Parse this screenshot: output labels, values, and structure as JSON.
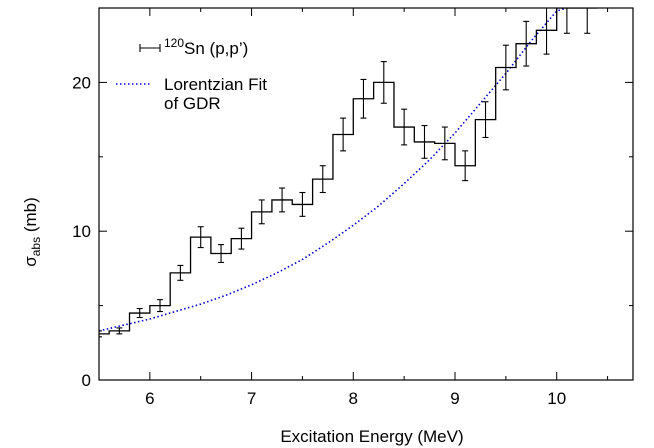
{
  "chart_data": {
    "type": "line",
    "xlabel": "Excitation Energy (MeV)",
    "ylabel_parts": {
      "main": "σ",
      "sub": "abs",
      "rest": " (mb)"
    },
    "xlim": [
      5.5,
      10.75
    ],
    "ylim": [
      0,
      25
    ],
    "xticks": [
      6,
      7,
      8,
      9,
      10
    ],
    "yticks": [
      0,
      10,
      20
    ],
    "legend_placement": "top-left",
    "series": [
      {
        "name_parts": {
          "sup": "120",
          "main": "Sn (p,p’)"
        },
        "kind": "histogram-with-errorbars",
        "color": "#000000",
        "bin_width": 0.2,
        "points": [
          {
            "x": 5.5,
            "y": 3.1,
            "err": 0.2
          },
          {
            "x": 5.7,
            "y": 3.3,
            "err": 0.2
          },
          {
            "x": 5.9,
            "y": 4.5,
            "err": 0.3
          },
          {
            "x": 6.1,
            "y": 5.0,
            "err": 0.4
          },
          {
            "x": 6.3,
            "y": 7.2,
            "err": 0.5
          },
          {
            "x": 6.5,
            "y": 9.6,
            "err": 0.7
          },
          {
            "x": 6.7,
            "y": 8.5,
            "err": 0.6
          },
          {
            "x": 6.9,
            "y": 9.5,
            "err": 0.7
          },
          {
            "x": 7.1,
            "y": 11.3,
            "err": 0.8
          },
          {
            "x": 7.3,
            "y": 12.1,
            "err": 0.8
          },
          {
            "x": 7.5,
            "y": 11.8,
            "err": 0.8
          },
          {
            "x": 7.7,
            "y": 13.5,
            "err": 0.9
          },
          {
            "x": 7.9,
            "y": 16.5,
            "err": 1.1
          },
          {
            "x": 8.1,
            "y": 18.9,
            "err": 1.3
          },
          {
            "x": 8.3,
            "y": 20.0,
            "err": 1.4
          },
          {
            "x": 8.5,
            "y": 17.0,
            "err": 1.2
          },
          {
            "x": 8.7,
            "y": 16.0,
            "err": 1.1
          },
          {
            "x": 8.9,
            "y": 15.9,
            "err": 1.1
          },
          {
            "x": 9.1,
            "y": 14.4,
            "err": 1.0
          },
          {
            "x": 9.3,
            "y": 17.5,
            "err": 1.2
          },
          {
            "x": 9.5,
            "y": 21.0,
            "err": 1.5
          },
          {
            "x": 9.7,
            "y": 22.6,
            "err": 1.5
          },
          {
            "x": 9.9,
            "y": 23.5,
            "err": 1.6
          },
          {
            "x": 10.1,
            "y": 25.0,
            "err": 1.7
          },
          {
            "x": 10.3,
            "y": 25.0,
            "err": 1.7
          }
        ]
      },
      {
        "name_lines": [
          "Lorentzian Fit",
          "of GDR"
        ],
        "kind": "curve",
        "color": "#0000cc",
        "style": "dotted",
        "x": [
          5.5,
          5.75,
          6.0,
          6.25,
          6.5,
          6.75,
          7.0,
          7.25,
          7.5,
          7.75,
          8.0,
          8.25,
          8.5,
          8.75,
          9.0,
          9.25,
          9.5,
          9.75,
          10.0,
          10.1
        ],
        "y": [
          3.3,
          3.7,
          4.1,
          4.6,
          5.1,
          5.7,
          6.4,
          7.2,
          8.1,
          9.2,
          10.4,
          11.7,
          13.2,
          14.8,
          16.6,
          18.6,
          20.6,
          22.8,
          24.8,
          25.0
        ]
      }
    ]
  }
}
